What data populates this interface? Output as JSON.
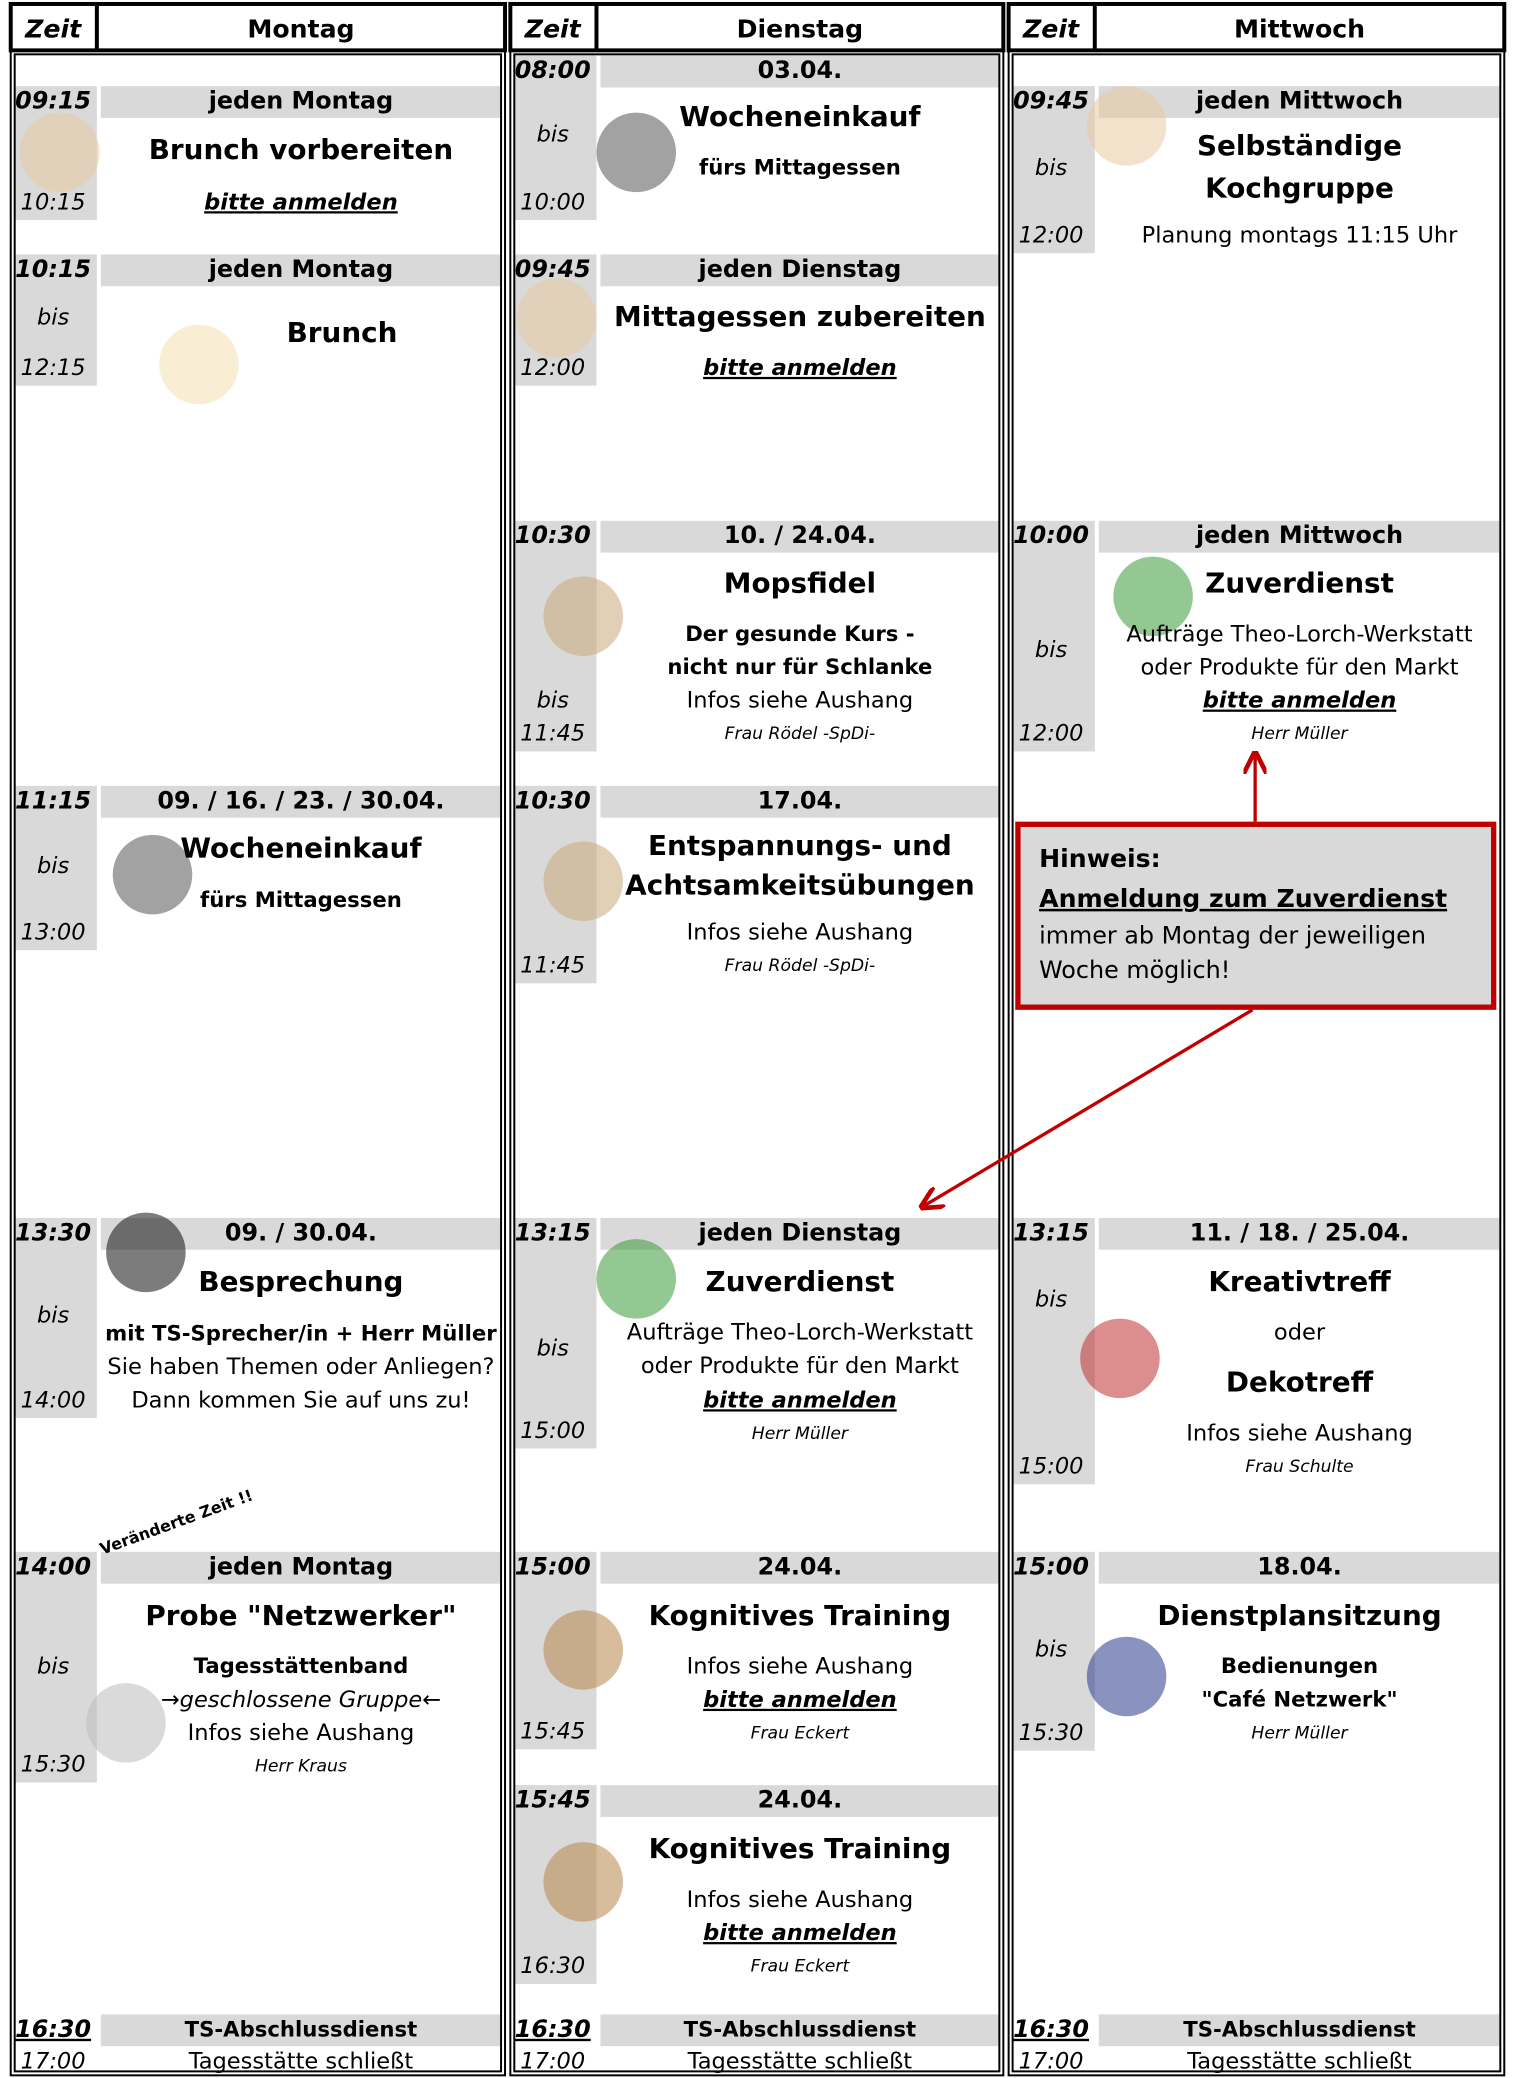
{
  "columns": [
    {
      "zeit": "Zeit",
      "day": "Montag",
      "events": [
        {
          "start": "09:15",
          "end": "10:15",
          "banner": "jeden Montag",
          "lines": [
            "Brunch vorbereiten",
            "bitte anmelden"
          ]
        },
        {
          "start": "10:15",
          "mid": "bis",
          "end": "12:15",
          "banner": "jeden Montag",
          "lines": [
            "Brunch"
          ]
        },
        {
          "start": "11:15",
          "mid": "bis",
          "end": "13:00",
          "banner": "09. / 16. / 23. / 30.04.",
          "lines": [
            "Wocheneinkauf",
            "fürs Mittagessen"
          ]
        },
        {
          "start": "13:30",
          "mid": "bis",
          "end": "14:00",
          "banner": "09. / 30.04.",
          "lines": [
            "Besprechung",
            "mit TS-Sprecher/in + Herr Müller",
            "Sie haben Themen oder Anliegen?",
            "Dann kommen Sie auf uns zu!"
          ]
        },
        {
          "start": "14:00",
          "mid": "bis",
          "end": "15:30",
          "banner": "jeden Montag",
          "lines": [
            "Probe \"Netzwerker\"",
            "Tagesstättenband",
            "→geschlossene Gruppe←",
            "Infos siehe Aushang",
            "Herr Kraus"
          ]
        },
        {
          "start": "16:30",
          "end": "17:00",
          "banner": "TS-Abschlussdienst",
          "lines": [
            "Tagesstätte schließt"
          ]
        }
      ]
    },
    {
      "zeit": "Zeit",
      "day": "Dienstag",
      "events": [
        {
          "start": "08:00",
          "mid": "bis",
          "end": "10:00",
          "banner": "03.04.",
          "lines": [
            "Wocheneinkauf",
            "fürs Mittagessen"
          ]
        },
        {
          "start": "09:45",
          "end": "12:00",
          "banner": "jeden Dienstag",
          "lines": [
            "Mittagessen zubereiten",
            "bitte anmelden"
          ]
        },
        {
          "start": "10:30",
          "mid": "bis",
          "end": "11:45",
          "banner": "10. / 24.04.",
          "lines": [
            "Mopsfidel",
            "Der gesunde Kurs -",
            "nicht nur für Schlanke",
            "Infos siehe Aushang",
            "Frau Rödel -SpDi-"
          ]
        },
        {
          "start": "10:30",
          "end": "11:45",
          "banner": "17.04.",
          "lines": [
            "Entspannungs- und",
            "Achtsamkeitsübungen",
            "Infos siehe Aushang",
            "Frau Rödel -SpDi-"
          ]
        },
        {
          "start": "13:15",
          "mid": "bis",
          "end": "15:00",
          "banner": "jeden Dienstag",
          "lines": [
            "Zuverdienst",
            "Aufträge Theo-Lorch-Werkstatt",
            "oder Produkte für den Markt",
            "bitte anmelden",
            "Herr Müller"
          ]
        },
        {
          "start": "15:00",
          "end": "15:45",
          "banner": "24.04.",
          "lines": [
            "Kognitives Training",
            "Infos siehe Aushang",
            "bitte anmelden",
            "Frau Eckert"
          ]
        },
        {
          "start": "15:45",
          "end": "16:30",
          "banner": "24.04.",
          "lines": [
            "Kognitives Training",
            "Infos siehe Aushang",
            "bitte anmelden",
            "Frau Eckert"
          ]
        },
        {
          "start": "16:30",
          "end": "17:00",
          "banner": "TS-Abschlussdienst",
          "lines": [
            "Tagesstätte schließt"
          ]
        }
      ]
    },
    {
      "zeit": "Zeit",
      "day": "Mittwoch",
      "events": [
        {
          "start": "09:45",
          "mid": "bis",
          "end": "12:00",
          "banner": "jeden Mittwoch",
          "lines": [
            "Selbständige",
            "Kochgruppe",
            "Planung montags 11:15 Uhr"
          ]
        },
        {
          "start": "10:00",
          "mid": "bis",
          "end": "12:00",
          "banner": "jeden Mittwoch",
          "lines": [
            "Zuverdienst",
            "Aufträge Theo-Lorch-Werkstatt",
            "oder Produkte für den Markt",
            "bitte anmelden",
            "Herr Müller"
          ]
        },
        {
          "start": "13:15",
          "mid": "bis",
          "end": "15:00",
          "banner": "11. / 18. / 25.04.",
          "lines": [
            "Kreativtreff",
            "oder",
            "Dekotreff",
            "Infos siehe Aushang",
            "Frau Schulte"
          ]
        },
        {
          "start": "15:00",
          "mid": "bis",
          "end": "15:30",
          "banner": "18.04.",
          "lines": [
            "Dienstplansitzung",
            "Bedienungen",
            "\"Café Netzwerk\"",
            "Herr Müller"
          ]
        },
        {
          "start": "16:30",
          "end": "17:00",
          "banner": "TS-Abschlussdienst",
          "lines": [
            "Tagesstätte schließt"
          ]
        }
      ]
    }
  ],
  "hint": {
    "title": "Hinweis:",
    "subtitle": "Anmeldung zum Zuverdienst",
    "lines": [
      "immer ab Montag der jeweiligen",
      "Woche möglich!"
    ]
  },
  "annotation": "Veränderte Zeit !!"
}
